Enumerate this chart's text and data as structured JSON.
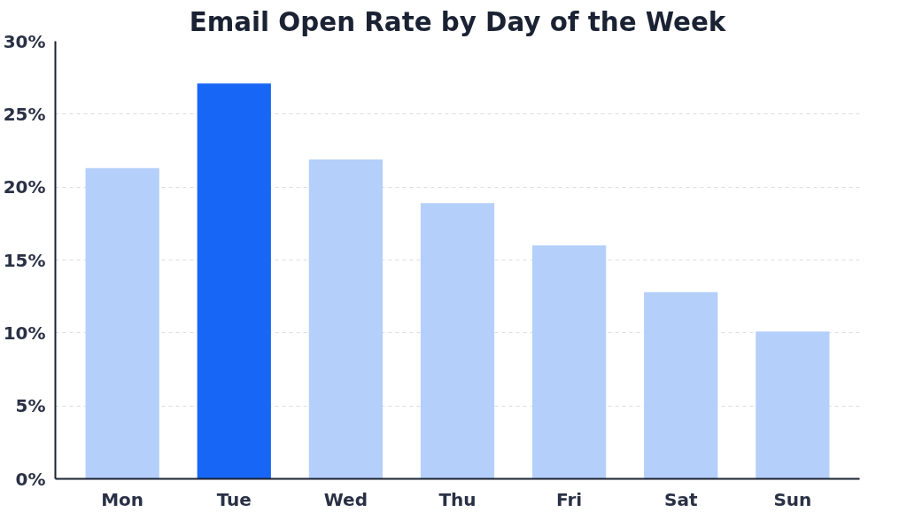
{
  "chart_data": {
    "type": "bar",
    "title": "Email Open Rate by Day of the Week",
    "categories": [
      "Mon",
      "Tue",
      "Wed",
      "Thu",
      "Fri",
      "Sat",
      "Sun"
    ],
    "values": [
      21.3,
      27.1,
      21.9,
      18.9,
      16.0,
      12.8,
      10.1
    ],
    "colors": [
      "#b4cffa",
      "#1766f5",
      "#b4cffa",
      "#b4cffa",
      "#b4cffa",
      "#b4cffa",
      "#b4cffa"
    ],
    "ylim": [
      0,
      30
    ],
    "yticks": [
      {
        "value": 0,
        "label": "0%"
      },
      {
        "value": 5,
        "label": "5%"
      },
      {
        "value": 10,
        "label": "10%"
      },
      {
        "value": 15,
        "label": "15%"
      },
      {
        "value": 20,
        "label": "20%"
      },
      {
        "value": 25,
        "label": "25%"
      },
      {
        "value": 30,
        "label": "30%"
      }
    ],
    "grid": "y"
  }
}
